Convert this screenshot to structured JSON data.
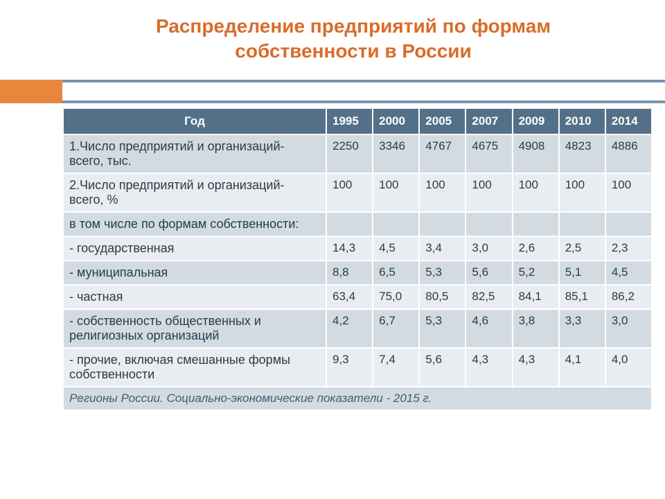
{
  "title": "Распределение предприятий по формам собственности в России",
  "table": {
    "header_first": "Год",
    "years": [
      "1995",
      "2000",
      "2005",
      "2007",
      "2009",
      "2010",
      "2014"
    ],
    "rows": [
      {
        "label": "1.Число предприятий и организаций- всего, тыс.",
        "cells": [
          "2250",
          "3346",
          "4767",
          "4675",
          "4908",
          "4823",
          "4886"
        ]
      },
      {
        "label": "2.Число предприятий и организаций- всего, %",
        "cells": [
          "100",
          "100",
          "100",
          "100",
          "100",
          "100",
          "100"
        ]
      },
      {
        "label": "в том числе по формам собственности:",
        "cells": [
          "",
          "",
          "",
          "",
          "",
          "",
          ""
        ]
      },
      {
        "label": "- государственная",
        "cells": [
          "14,3",
          "4,5",
          "3,4",
          "3,0",
          "2,6",
          "2,5",
          "2,3"
        ]
      },
      {
        "label": "- муниципальная",
        "cells": [
          "8,8",
          "6,5",
          "5,3",
          "5,6",
          "5,2",
          "5,1",
          "4,5"
        ]
      },
      {
        "label": "- частная",
        "cells": [
          "63,4",
          "75,0",
          "80,5",
          "82,5",
          "84,1",
          "85,1",
          "86,2"
        ]
      },
      {
        "label": "- собственность общественных и религиозных организаций",
        "cells": [
          "4,2",
          "6,7",
          "5,3",
          "4,6",
          "3,8",
          "3,3",
          "3,0"
        ]
      },
      {
        "label": "- прочие, включая смешанные формы собственности",
        "cells": [
          "9,3",
          "7,4",
          "5,6",
          "4,3",
          "4,3",
          "4,1",
          "4,0"
        ]
      }
    ],
    "footer": "Регионы России. Социально-экономические показатели - 2015 г."
  },
  "styling": {
    "title_color": "#d96c2a",
    "accent_color": "#e8863b",
    "header_bg": "#547089",
    "row_odd_bg": "#d3dbe2",
    "row_even_bg": "#e9edf1",
    "border_color": "#ffffff",
    "line_color": "#7593ae",
    "text_color": "#2b3a45",
    "title_fontsize": 28,
    "cell_fontsize": 17,
    "col_widths": {
      "first": 380,
      "year": 67
    }
  }
}
